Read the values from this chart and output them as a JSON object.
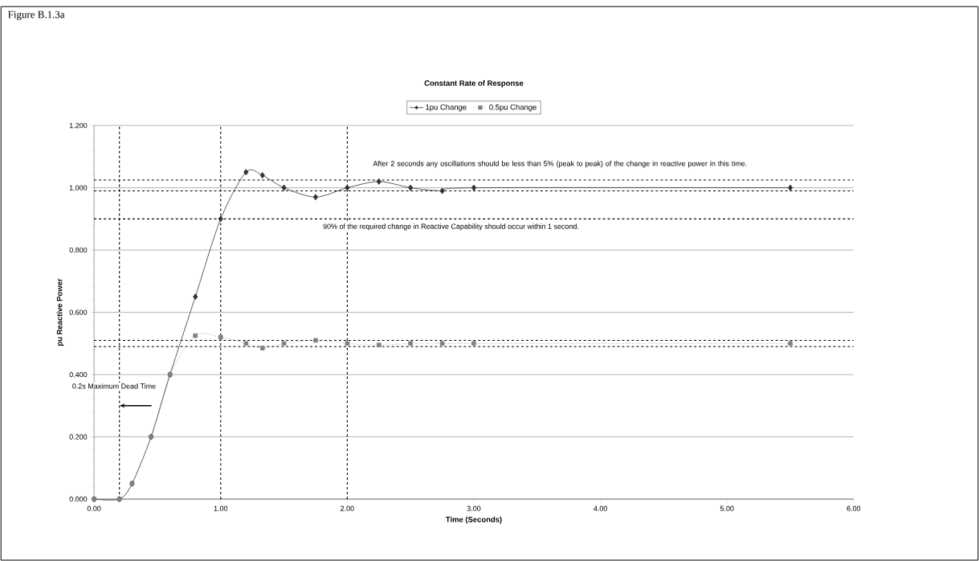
{
  "chart_data": {
    "type": "line",
    "title": "Constant Rate of Response",
    "xlabel": "Time (Seconds)",
    "ylabel": "pu Reactive Power",
    "x": [
      0,
      0.2,
      0.3,
      0.45,
      0.6,
      0.8,
      1.0,
      1.2,
      1.33,
      1.5,
      1.75,
      2.0,
      2.25,
      2.5,
      2.75,
      3.0,
      5.5
    ],
    "series": [
      {
        "name": "1pu Change",
        "color": "#333333",
        "marker": "diamond",
        "line_style": "solid",
        "values": [
          0,
          0,
          0.05,
          0.2,
          0.4,
          0.65,
          0.9,
          1.05,
          1.04,
          1.0,
          0.97,
          1.0,
          1.02,
          1.0,
          0.99,
          1.0,
          1.0
        ]
      },
      {
        "name": "0.5pu Change",
        "color": "#808080",
        "marker": "square",
        "line_style": "dotted",
        "values": [
          0,
          0,
          0.05,
          0.2,
          0.4,
          0.525,
          0.52,
          0.5,
          0.485,
          0.5,
          0.51,
          0.5,
          0.495,
          0.5,
          0.5,
          0.5,
          0.5
        ]
      }
    ],
    "xlim": [
      0,
      6
    ],
    "ylim": [
      0,
      1.2
    ],
    "xticks": [
      {
        "value": 0,
        "label": "0.00"
      },
      {
        "value": 1,
        "label": "1.00"
      },
      {
        "value": 2,
        "label": "2.00"
      },
      {
        "value": 3,
        "label": "3.00"
      },
      {
        "value": 4,
        "label": "4.00"
      },
      {
        "value": 5,
        "label": "5.00"
      },
      {
        "value": 6,
        "label": "6.00"
      }
    ],
    "yticks": [
      {
        "value": 0,
        "label": "0.000"
      },
      {
        "value": 0.2,
        "label": "0.200"
      },
      {
        "value": 0.4,
        "label": "0.400"
      },
      {
        "value": 0.6,
        "label": "0.600"
      },
      {
        "value": 0.8,
        "label": "0.800"
      },
      {
        "value": 1.0,
        "label": "1.000"
      },
      {
        "value": 1.2,
        "label": "1.200"
      }
    ],
    "grid": "y",
    "legend": "top",
    "ref_lines": [
      {
        "axis": "x",
        "value": 0.2,
        "line_style": "dashed",
        "color": "#000000"
      },
      {
        "axis": "x",
        "value": 1.0,
        "line_style": "dashed",
        "color": "#000000"
      },
      {
        "axis": "x",
        "value": 2.0,
        "line_style": "dashed",
        "color": "#000000"
      },
      {
        "axis": "y",
        "value": 0.9,
        "line_style": "dashed",
        "color": "#000000"
      },
      {
        "axis": "y",
        "value": 1.025,
        "line_style": "dashed",
        "color": "#000000"
      },
      {
        "axis": "y",
        "value": 0.99,
        "line_style": "dashed",
        "color": "#000000"
      },
      {
        "axis": "y",
        "value": 0.51,
        "line_style": "dashed",
        "color": "#000000"
      },
      {
        "axis": "y",
        "value": 0.49,
        "line_style": "dashed",
        "color": "#000000"
      }
    ],
    "annotations": [
      "Figure B.1.3a",
      {
        "text": "0.2s Maximum Dead Time",
        "x": 0.2,
        "y": 0.3
      },
      "90% of the required change in Reactive Capability should occur within 1 second.",
      "After 2 seconds any oscillations should be less than 5% (peak to peak) of the change in reactive power in this time."
    ]
  }
}
